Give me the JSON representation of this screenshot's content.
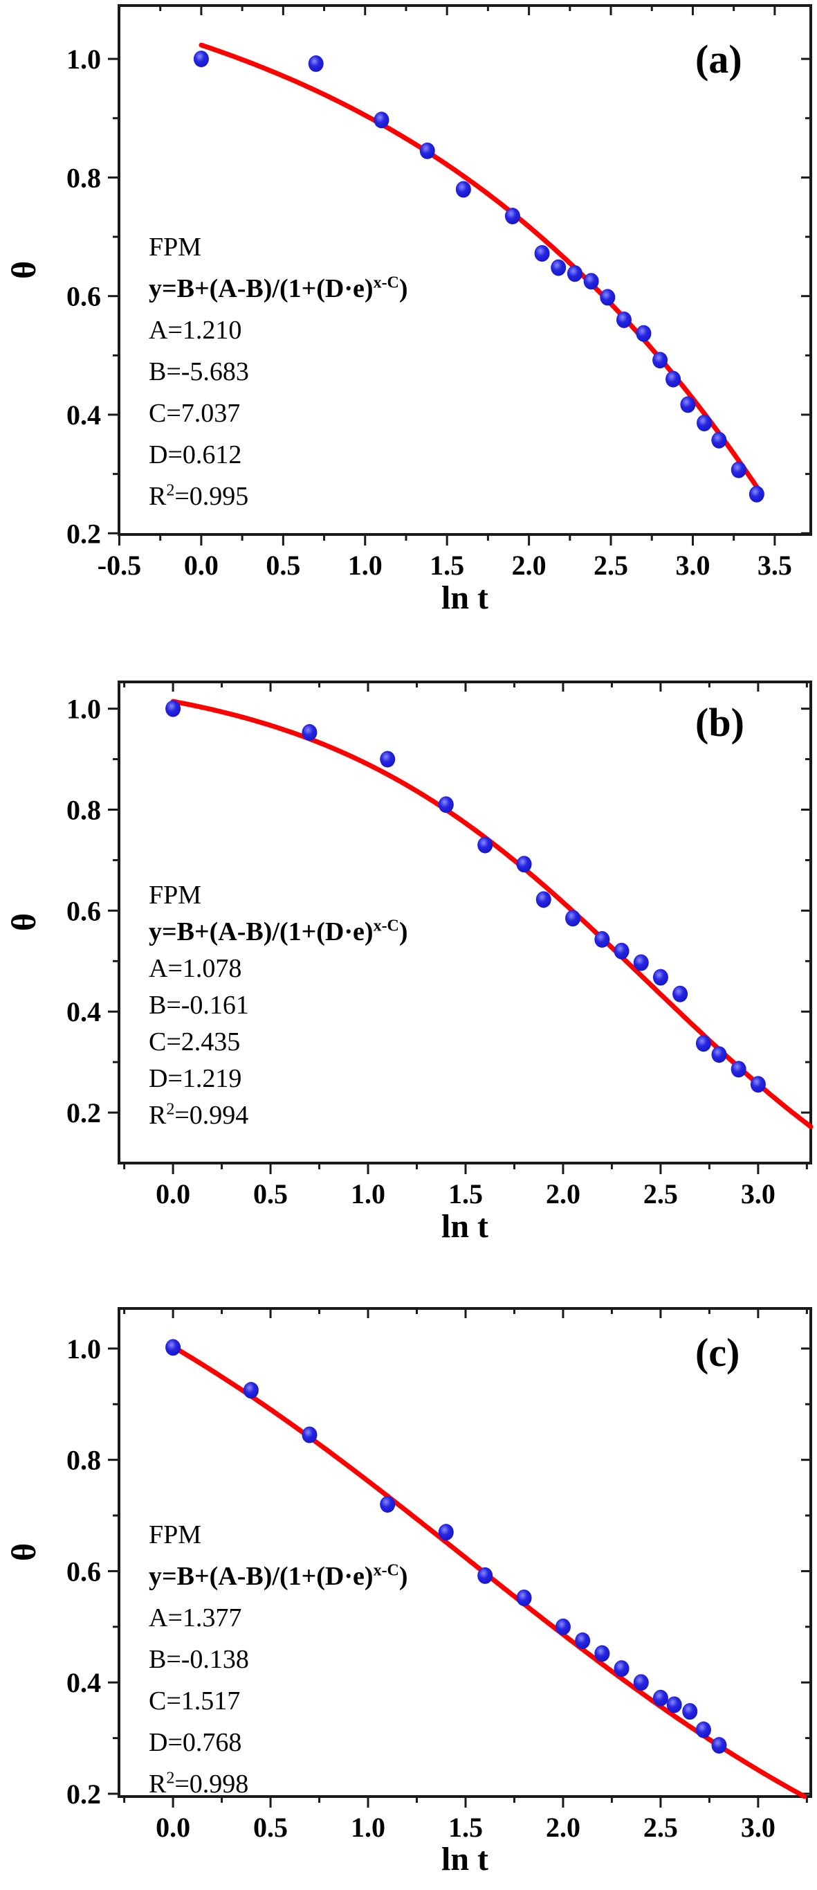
{
  "figure": {
    "xlabel": "ln t",
    "ylabel": "θ",
    "equation": {
      "prefix": "y=B+(A-B)/(1+(D·e)",
      "sup": "x-C",
      "suffix": ")"
    },
    "colors": {
      "curve": "#ff0000",
      "point": "#1414cc",
      "point_highlight": "#8a8aff",
      "axis": "#1a1a1a",
      "text": "#000000"
    }
  },
  "chart_data": [
    {
      "type": "scatter",
      "panel_label": "(a)",
      "model": "FPM",
      "xlabel": "ln t",
      "ylabel": "θ",
      "fit": {
        "A": 1.21,
        "B": -5.683,
        "C": 7.037,
        "D": 0.612,
        "R2": 0.995
      },
      "display": {
        "A": "A=1.210",
        "B": "B=-5.683",
        "C": "C=7.037",
        "D": "D=0.612",
        "R2_base": "R",
        "R2_sup": "2",
        "R2_rest": "=0.995"
      },
      "axes": {
        "xlim": [
          -0.502,
          3.72
        ],
        "ylim": [
          0.198,
          1.09
        ],
        "xticks": [
          -0.5,
          0.0,
          0.5,
          1.0,
          1.5,
          2.0,
          2.5,
          3.0,
          3.5
        ],
        "yticks": [
          0.2,
          0.4,
          0.6,
          0.8,
          1.0
        ],
        "xminor": 0.25,
        "yminor": 0.1,
        "grid": false
      },
      "curve_range": [
        0.0,
        3.42
      ],
      "points": [
        [
          0.0,
          1.0
        ],
        [
          0.7,
          0.992
        ],
        [
          1.1,
          0.897
        ],
        [
          1.38,
          0.845
        ],
        [
          1.6,
          0.78
        ],
        [
          1.9,
          0.735
        ],
        [
          2.08,
          0.672
        ],
        [
          2.18,
          0.648
        ],
        [
          2.28,
          0.638
        ],
        [
          2.38,
          0.625
        ],
        [
          2.48,
          0.598
        ],
        [
          2.58,
          0.56
        ],
        [
          2.7,
          0.537
        ],
        [
          2.8,
          0.492
        ],
        [
          2.88,
          0.46
        ],
        [
          2.97,
          0.417
        ],
        [
          3.07,
          0.386
        ],
        [
          3.16,
          0.357
        ],
        [
          3.28,
          0.307
        ],
        [
          3.39,
          0.266
        ]
      ]
    },
    {
      "type": "scatter",
      "panel_label": "(b)",
      "model": "FPM",
      "xlabel": "ln t",
      "ylabel": "θ",
      "fit": {
        "A": 1.078,
        "B": -0.161,
        "C": 2.435,
        "D": 1.219,
        "R2": 0.994
      },
      "display": {
        "A": "A=1.078",
        "B": "B=-0.161",
        "C": "C=2.435",
        "D": "D=1.219",
        "R2_base": "R",
        "R2_sup": "2",
        "R2_rest": "=0.994"
      },
      "axes": {
        "xlim": [
          -0.277,
          3.27
        ],
        "ylim": [
          0.1,
          1.053
        ],
        "xticks": [
          0.0,
          0.5,
          1.0,
          1.5,
          2.0,
          2.5,
          3.0
        ],
        "yticks": [
          0.2,
          0.4,
          0.6,
          0.8,
          1.0
        ],
        "xminor": 0.25,
        "yminor": 0.1,
        "grid": false
      },
      "curve_range": [
        0.0,
        3.27
      ],
      "points": [
        [
          0.0,
          1.0
        ],
        [
          0.7,
          0.953
        ],
        [
          1.1,
          0.9
        ],
        [
          1.4,
          0.81
        ],
        [
          1.6,
          0.73
        ],
        [
          1.8,
          0.692
        ],
        [
          1.9,
          0.622
        ],
        [
          2.05,
          0.585
        ],
        [
          2.2,
          0.543
        ],
        [
          2.3,
          0.52
        ],
        [
          2.4,
          0.497
        ],
        [
          2.5,
          0.468
        ],
        [
          2.6,
          0.435
        ],
        [
          2.72,
          0.337
        ],
        [
          2.8,
          0.315
        ],
        [
          2.9,
          0.286
        ],
        [
          3.0,
          0.256
        ]
      ]
    },
    {
      "type": "scatter",
      "panel_label": "(c)",
      "model": "FPM",
      "xlabel": "ln t",
      "ylabel": "θ",
      "fit": {
        "A": 1.377,
        "B": -0.138,
        "C": 1.517,
        "D": 0.768,
        "R2": 0.998
      },
      "display": {
        "A": "A=1.377",
        "B": "B=-0.138",
        "C": "C=1.517",
        "D": "D=0.768",
        "R2_base": "R",
        "R2_sup": "2",
        "R2_rest": "=0.998"
      },
      "axes": {
        "xlim": [
          -0.277,
          3.27
        ],
        "ylim": [
          0.195,
          1.072
        ],
        "xticks": [
          0.0,
          0.5,
          1.0,
          1.5,
          2.0,
          2.5,
          3.0
        ],
        "yticks": [
          0.2,
          0.4,
          0.6,
          0.8,
          1.0
        ],
        "xminor": 0.25,
        "yminor": 0.1,
        "grid": false
      },
      "curve_range": [
        0.0,
        3.27
      ],
      "points": [
        [
          0.0,
          1.002
        ],
        [
          0.4,
          0.925
        ],
        [
          0.7,
          0.845
        ],
        [
          1.1,
          0.72
        ],
        [
          1.4,
          0.67
        ],
        [
          1.6,
          0.592
        ],
        [
          1.8,
          0.552
        ],
        [
          2.0,
          0.5
        ],
        [
          2.1,
          0.475
        ],
        [
          2.2,
          0.452
        ],
        [
          2.3,
          0.425
        ],
        [
          2.4,
          0.4
        ],
        [
          2.5,
          0.372
        ],
        [
          2.57,
          0.36
        ],
        [
          2.65,
          0.348
        ],
        [
          2.72,
          0.315
        ],
        [
          2.8,
          0.287
        ]
      ]
    }
  ]
}
